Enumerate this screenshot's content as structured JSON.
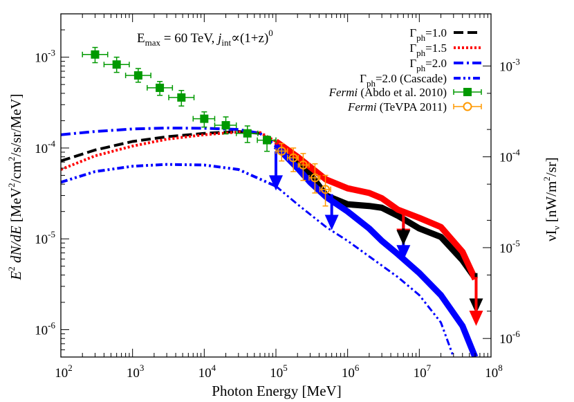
{
  "chart_data": {
    "type": "line",
    "title": "",
    "annotation": {
      "pre": "E",
      "sub1": "max",
      "mid": " = 60 TeV, ",
      "j": "j",
      "sub2": "int",
      "tail": "∝(1+z)",
      "sup": "0"
    },
    "xlabel": "Photon Energy [MeV]",
    "ylabel": {
      "e": "E",
      "sup2": "2",
      "dnde": " dN/dE",
      "unit1": " [MeV",
      "sup2b": "2",
      "unit2": "/cm",
      "sup2c": "2",
      "unit3": "/s/sr/MeV]"
    },
    "y2label": {
      "nu": "νI",
      "sub": "ν",
      "unit1": " [nW/m",
      "sup2": "2",
      "unit2": "/sr]"
    },
    "xscale": "log",
    "yscale": "log",
    "xlim": [
      100,
      100000000
    ],
    "ylim": [
      5e-07,
      0.003
    ],
    "y2lim_note": "right axis in nW/m^2/sr",
    "x_ticks": [
      {
        "base": "10",
        "exp": "2"
      },
      {
        "base": "10",
        "exp": "3"
      },
      {
        "base": "10",
        "exp": "4"
      },
      {
        "base": "10",
        "exp": "5"
      },
      {
        "base": "10",
        "exp": "6"
      },
      {
        "base": "10",
        "exp": "7"
      },
      {
        "base": "10",
        "exp": "8"
      }
    ],
    "y_ticks": [
      {
        "base": "10",
        "exp": "-3",
        "v": 0.001
      },
      {
        "base": "10",
        "exp": "-4",
        "v": 0.0001
      },
      {
        "base": "10",
        "exp": "-5",
        "v": 1e-05
      },
      {
        "base": "10",
        "exp": "-6",
        "v": 1e-06
      }
    ],
    "y2_ticks": [
      {
        "base": "10",
        "exp": "-3",
        "v": 0.0008
      },
      {
        "base": "10",
        "exp": "-4",
        "v": 8e-05
      },
      {
        "base": "10",
        "exp": "-5",
        "v": 8e-06
      },
      {
        "base": "10",
        "exp": "-6",
        "v": 8e-07
      }
    ],
    "legend_position": "top-right",
    "series": [
      {
        "name": "Γph=1.0",
        "label_pre": "Γ",
        "label_sub": "ph",
        "label_post": "=1.0",
        "color": "#000000",
        "style": "dashed",
        "x": [
          100,
          300,
          1000,
          3000,
          10000,
          30000,
          60000,
          100000,
          200000,
          300000,
          500000,
          1000000,
          2000000,
          3000000,
          5000000,
          10000000,
          20000000,
          40000000,
          60000000
        ],
        "y": [
          7.2e-05,
          9.5e-05,
          0.000118,
          0.000133,
          0.000145,
          0.000152,
          0.000145,
          0.00011,
          7e-05,
          5.2e-05,
          3e-05,
          2.4e-05,
          2.3e-05,
          2.2e-05,
          1.8e-05,
          1.3e-05,
          1.05e-05,
          5.8e-06,
          3.7e-06
        ]
      },
      {
        "name": "Γph=1.5",
        "label_pre": "Γ",
        "label_sub": "ph",
        "label_post": "=1.5",
        "color": "#ff0000",
        "style": "dotted",
        "x": [
          100,
          300,
          1000,
          3000,
          10000,
          30000,
          60000,
          100000,
          200000,
          300000,
          500000,
          1000000,
          2000000,
          3000000,
          5000000,
          10000000,
          20000000,
          40000000,
          60000000
        ],
        "y": [
          5.8e-05,
          8.2e-05,
          0.000105,
          0.000125,
          0.00014,
          0.00015,
          0.000148,
          0.000118,
          8e-05,
          6.2e-05,
          4.5e-05,
          3.6e-05,
          3.2e-05,
          2.8e-05,
          2.1e-05,
          1.7e-05,
          1.35e-05,
          7.2e-06,
          3.6e-06
        ]
      },
      {
        "name": "Γph=2.0",
        "label_pre": "Γ",
        "label_sub": "ph",
        "label_post": "=2.0",
        "color": "#0000ff",
        "style": "dashdot",
        "x": [
          100,
          300,
          1000,
          3000,
          10000,
          30000,
          60000,
          100000,
          200000,
          300000,
          500000,
          1000000,
          2000000,
          3000000,
          5000000,
          10000000,
          20000000,
          40000000,
          60000000
        ],
        "y": [
          0.00014,
          0.000152,
          0.000162,
          0.000166,
          0.000165,
          0.00016,
          0.000145,
          0.000105,
          6e-05,
          4.2e-05,
          2.9e-05,
          2e-05,
          1.3e-05,
          9.5e-06,
          6.8e-06,
          4.2e-06,
          2.4e-06,
          1.1e-06,
          5e-07
        ]
      },
      {
        "name": "Γph=2.0 (Cascade)",
        "label_pre": "Γ",
        "label_sub": "ph",
        "label_post": "=2.0 (Cascade)",
        "color": "#0000ff",
        "style": "dashdotdot",
        "x": [
          100,
          300,
          1000,
          3000,
          10000,
          30000,
          100000,
          200000,
          500000,
          1000000,
          2000000,
          5000000,
          10000000,
          20000000,
          30000000
        ],
        "y": [
          4.2e-05,
          5.5e-05,
          6.3e-05,
          6.6e-05,
          6.5e-05,
          5.8e-05,
          3.8e-05,
          2.4e-05,
          1.35e-05,
          9.5e-06,
          6.4e-06,
          3.8e-06,
          2.4e-06,
          1.2e-06,
          5e-07
        ]
      },
      {
        "name": "Fermi (Abdo et al. 2010)",
        "label_pre": "Fermi",
        "label_post": " (Abdo et al. 2010)",
        "color": "#009900",
        "style": "points-square",
        "x": [
          300,
          600,
          1200,
          2400,
          4800,
          10000,
          20000,
          40000,
          75000
        ],
        "y": [
          0.00107,
          0.00083,
          0.00063,
          0.00046,
          0.00036,
          0.00021,
          0.000178,
          0.000145,
          0.000122
        ],
        "xerr_low": [
          200,
          400,
          800,
          1600,
          3200,
          7000,
          14000,
          28000,
          55000
        ],
        "xerr_high": [
          450,
          900,
          1800,
          3600,
          7200,
          14000,
          28000,
          56000,
          100000
        ],
        "yerr_low": [
          0.00087,
          0.00068,
          0.00053,
          0.00038,
          0.00029,
          0.00017,
          0.000143,
          0.000115,
          9.2e-05
        ],
        "yerr_high": [
          0.00128,
          0.001,
          0.00075,
          0.00054,
          0.00043,
          0.00025,
          0.00022,
          0.000175,
          0.000135
        ]
      },
      {
        "name": "Fermi (TeVPA 2011)",
        "label_pre": "Fermi",
        "label_post": " (TeVPA 2011)",
        "color": "#ff9900",
        "style": "points-circle",
        "x": [
          120000,
          175000,
          240000,
          350000,
          490000
        ],
        "y": [
          9.25e-05,
          7.8e-05,
          6.5e-05,
          4.7e-05,
          3.5e-05
        ],
        "xerr_low": [
          100000,
          145000,
          205000,
          290000,
          410000
        ],
        "xerr_high": [
          145000,
          205000,
          290000,
          410000,
          580000
        ],
        "yerr_low": [
          7.2e-05,
          5.5e-05,
          4.4e-05,
          3.2e-05,
          2.3e-05
        ],
        "yerr_high": [
          0.000112,
          0.0001,
          8.7e-05,
          6.7e-05,
          5e-05
        ]
      }
    ],
    "upper_limits": [
      {
        "x": 100000,
        "y_top": 9.2e-05,
        "y_bottom": 3.4e-05,
        "color": "#0000ff"
      },
      {
        "x": 600000,
        "y_top": 3.1e-05,
        "y_bottom": 1.25e-05,
        "color": "#0000ff"
      },
      {
        "x": 6000000,
        "y_top": 1.45e-05,
        "y_bottom": 5.8e-06,
        "color": "#0000ff"
      },
      {
        "x": 6000000,
        "y_top": 2.05e-05,
        "y_bottom": 8.8e-06,
        "color": "#ff0000"
      },
      {
        "x": 6000000,
        "y_top": 1.3e-05,
        "y_bottom": 8.5e-06,
        "color": "#000000"
      },
      {
        "x": 62000000,
        "y_top": 4.2e-06,
        "y_bottom": 1.5e-06,
        "color": "#000000"
      },
      {
        "x": 62000000,
        "y_top": 3.8e-06,
        "y_bottom": 1.1e-06,
        "color": "#ff0000"
      }
    ]
  }
}
